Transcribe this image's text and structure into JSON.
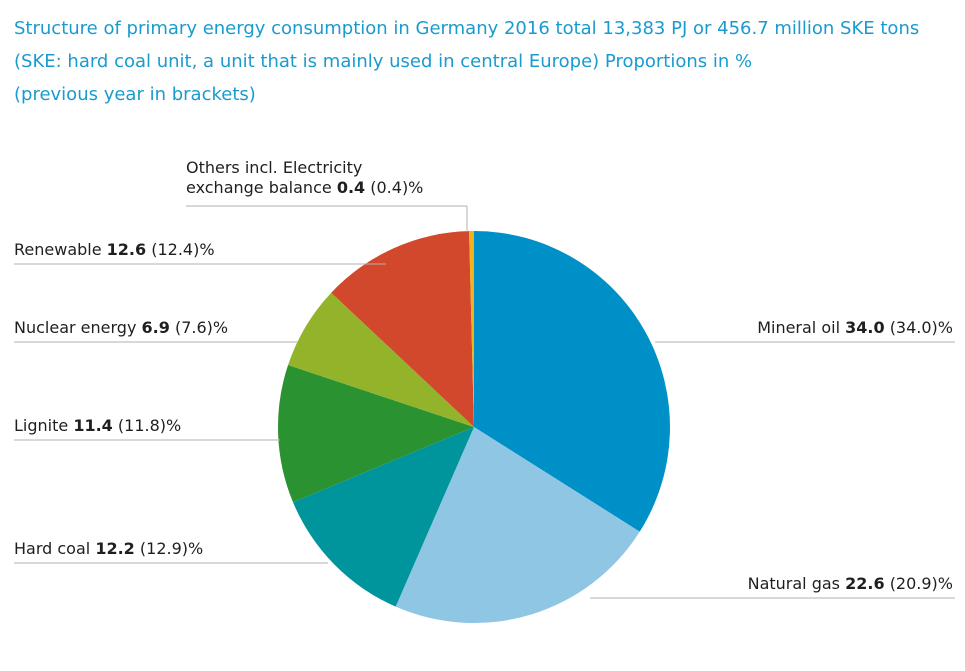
{
  "title": {
    "line1": "Structure of primary energy consumption in Germany 2016 total 13,383 PJ or 456.7 million SKE tons",
    "line2": "(SKE: hard coal unit, a unit that is mainly used in central Europe) Proportions in %",
    "line3": "(previous year in brackets)"
  },
  "chart_data": {
    "type": "pie",
    "title": "Structure of primary energy consumption in Germany 2016 total 13,383 PJ or 456.7 million SKE tons (SKE: hard coal unit, a unit that is mainly used in central Europe) Proportions in % (previous year in brackets)",
    "start_angle_deg": 0,
    "direction": "clockwise",
    "slices": [
      {
        "label": "Mineral oil",
        "value": 34.0,
        "previous": "(34.0)",
        "color": "#0090c8"
      },
      {
        "label": "Natural gas",
        "value": 22.6,
        "previous": "(20.9)",
        "color": "#8fc6e4"
      },
      {
        "label": "Hard coal",
        "value": 12.2,
        "previous": "(12.9)",
        "color": "#00959d"
      },
      {
        "label": "Lignite",
        "value": 11.4,
        "previous": "(11.8)",
        "color": "#2a9230"
      },
      {
        "label": "Nuclear energy",
        "value": 6.9,
        "previous": "(7.6)",
        "color": "#93b42a"
      },
      {
        "label": "Renewable",
        "value": 12.6,
        "previous": "(12.4)",
        "color": "#d2482d"
      },
      {
        "label": "Others incl. Electricity exchange balance",
        "value": 0.4,
        "previous": "(0.4)",
        "color": "#f2b21c"
      }
    ],
    "labels": {
      "mineral_oil": {
        "name": "Mineral oil",
        "value": "34.0",
        "prev": "(34.0)%"
      },
      "natural_gas": {
        "name": "Natural gas",
        "value": "22.6",
        "prev": "(20.9)%"
      },
      "hard_coal": {
        "name": "Hard coal",
        "value": "12.2",
        "prev": "(12.9)%"
      },
      "lignite": {
        "name": "Lignite",
        "value": "11.4",
        "prev": "(11.8)%"
      },
      "nuclear": {
        "name": "Nuclear energy",
        "value": "6.9",
        "prev": "(7.6)%"
      },
      "renewable": {
        "name": "Renewable",
        "value": "12.6",
        "prev": "(12.4)%"
      },
      "others": {
        "line1": "Others incl. Electricity",
        "name": "exchange balance",
        "value": "0.4",
        "prev": "(0.4)%"
      }
    }
  }
}
